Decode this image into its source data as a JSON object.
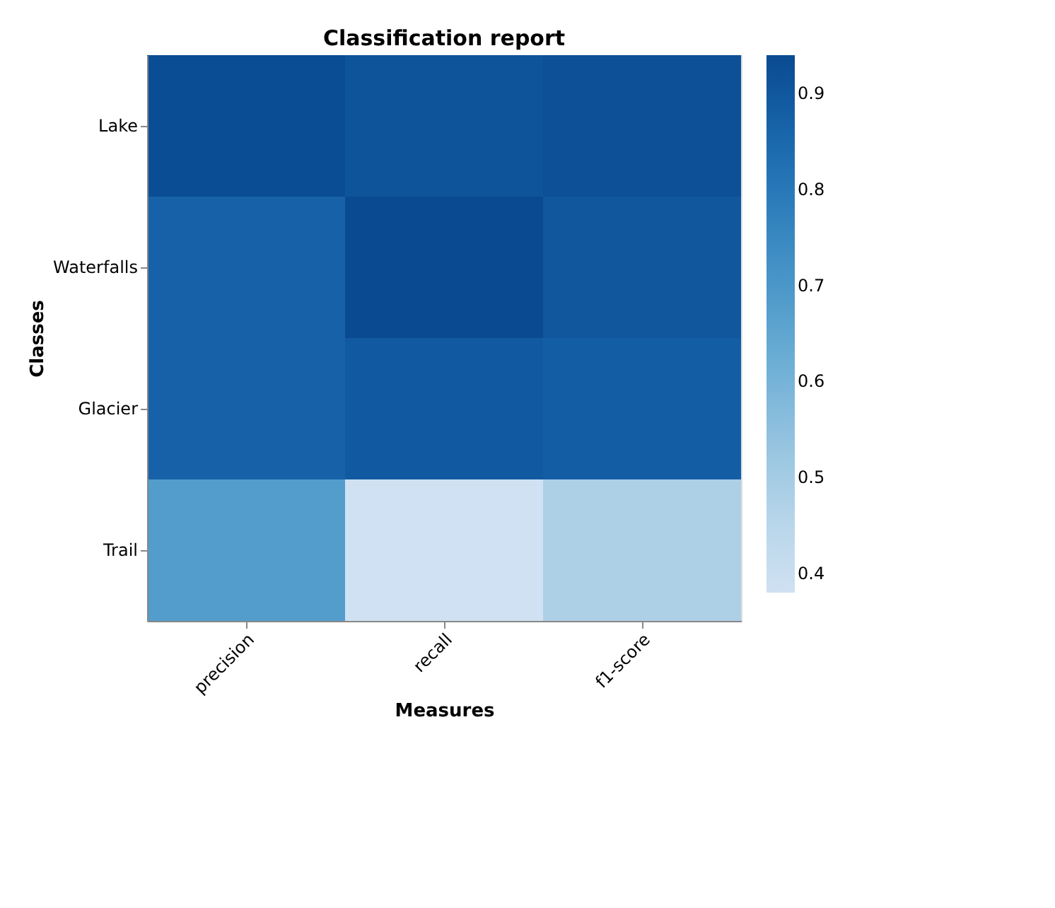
{
  "chart_data": {
    "type": "heatmap",
    "title": "Classification report",
    "xlabel": "Measures",
    "ylabel": "Classes",
    "categories": [
      "precision",
      "recall",
      "f1-score"
    ],
    "y_categories": [
      "Lake",
      "Waterfalls",
      "Glacier",
      "Trail"
    ],
    "cells": [
      [
        0.93,
        0.91,
        0.92
      ],
      [
        0.87,
        0.94,
        0.9
      ],
      [
        0.87,
        0.89,
        0.88
      ],
      [
        0.68,
        0.38,
        0.48
      ]
    ],
    "clim": [
      0.38,
      0.94
    ],
    "cticks": [
      0.4,
      0.5,
      0.6,
      0.7,
      0.8,
      0.9
    ]
  }
}
